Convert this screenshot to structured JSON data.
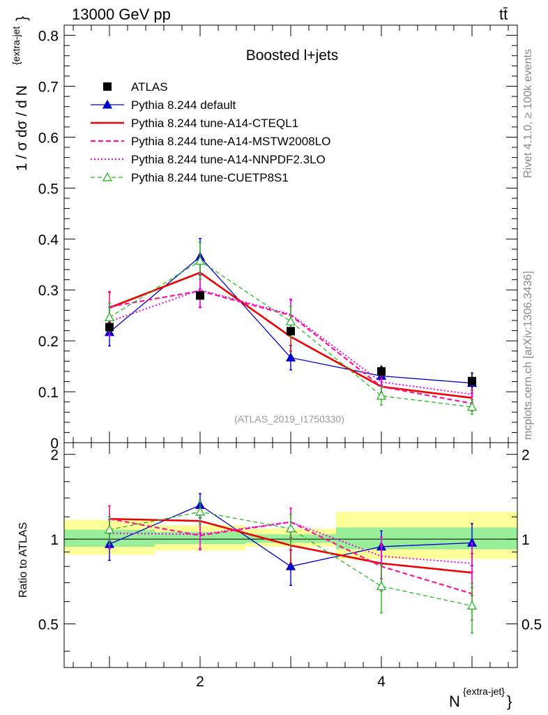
{
  "header": {
    "left_title": "13000 GeV pp",
    "right_title": "tt̄"
  },
  "side_labels": {
    "rivet": "Rivet 4.1.0, ≥ 100k events",
    "mcplots": "mcplots.cern.ch [arXiv:1306.3436]"
  },
  "chart_data": {
    "type": "line",
    "title": "Boosted l+jets",
    "analysis_id": "(ATLAS_2019_I1750330)",
    "xlabel_main": "N",
    "xlabel_sup": "{extra-jet}",
    "xlabel_close": "}",
    "ylabel_main": "1 / σ dσ / d N",
    "ylabel_sup": "{extra-jet",
    "ylabel_close": "}",
    "ratio_ylabel": "Ratio to ATLAS",
    "xlim": [
      0.5,
      5.5
    ],
    "ylim": [
      0,
      0.82
    ],
    "ratio_ylim": [
      0.35,
      2.2
    ],
    "x_ticks": [
      2,
      4
    ],
    "x_tick_labels": [
      "2",
      "4"
    ],
    "y_ticks": [
      0,
      0.1,
      0.2,
      0.3,
      0.4,
      0.5,
      0.6,
      0.7,
      0.8
    ],
    "y_tick_labels": [
      "0",
      "0.1",
      "0.2",
      "0.3",
      "0.4",
      "0.5",
      "0.6",
      "0.7",
      "0.8"
    ],
    "ratio_ticks": [
      0.5,
      1,
      2
    ],
    "ratio_tick_labels": [
      "0.5",
      "1",
      "2"
    ],
    "x": [
      1,
      2,
      3,
      4,
      5
    ],
    "data": {
      "name": "ATLAS",
      "values": [
        0.227,
        0.289,
        0.219,
        0.14,
        0.121
      ],
      "errors": [
        0.01,
        0.008,
        0.008,
        0.012,
        0.015
      ]
    },
    "bands": {
      "yellow": [
        [
          0.5,
          1.5,
          0.88,
          1.17
        ],
        [
          1.5,
          2.5,
          0.91,
          1.12
        ],
        [
          2.5,
          3.5,
          0.94,
          1.09
        ],
        [
          3.5,
          5.5,
          0.85,
          1.25
        ]
      ],
      "green": [
        [
          0.5,
          1.5,
          0.94,
          1.08
        ],
        [
          1.5,
          2.5,
          0.96,
          1.06
        ],
        [
          2.5,
          3.5,
          0.97,
          1.04
        ],
        [
          3.5,
          5.5,
          0.92,
          1.1
        ]
      ]
    },
    "series": [
      {
        "name": "Pythia 8.244 default",
        "color": "#0000cc",
        "dash": "",
        "width": 1.3,
        "marker": "triangle-filled",
        "values": [
          0.217,
          0.365,
          0.167,
          0.131,
          0.117
        ],
        "errors": [
          0.027,
          0.036,
          0.024,
          0.018,
          0.02
        ],
        "ratio": [
          0.96,
          1.32,
          0.8,
          0.94,
          0.97
        ]
      },
      {
        "name": "Pythia 8.244 tune-A14-CTEQL1",
        "color": "#ee0000",
        "dash": "",
        "width": 2.6,
        "marker": "none",
        "values": [
          0.265,
          0.334,
          0.208,
          0.11,
          0.088
        ],
        "errors": [
          0.03,
          0.032,
          0.028,
          0.018,
          0.015
        ],
        "ratio": [
          1.18,
          1.16,
          0.95,
          0.82,
          0.76
        ]
      },
      {
        "name": "Pythia 8.244 tune-A14-MSTW2008LO",
        "color": "#ff1493",
        "dash": "7,4",
        "width": 2.2,
        "marker": "none",
        "values": [
          0.267,
          0.298,
          0.25,
          0.11,
          0.077
        ],
        "errors": [
          0.03,
          0.033,
          0.03,
          0.02,
          0.015
        ],
        "ratio": [
          1.18,
          1.03,
          1.15,
          0.8,
          0.64
        ]
      },
      {
        "name": "Pythia 8.244 tune-A14-NNPDF2.3LO",
        "color": "#ee00ee",
        "dash": "2,3",
        "width": 2.0,
        "marker": "none",
        "values": [
          0.238,
          0.3,
          0.252,
          0.119,
          0.095
        ],
        "errors": [
          0.028,
          0.033,
          0.03,
          0.02,
          0.017
        ],
        "ratio": [
          1.05,
          1.04,
          1.15,
          0.87,
          0.82
        ]
      },
      {
        "name": "Pythia 8.244 tune-CUETP8S1",
        "color": "#22bb22",
        "dash": "6,4",
        "width": 1.3,
        "marker": "triangle-open",
        "values": [
          0.246,
          0.357,
          0.238,
          0.092,
          0.07
        ],
        "errors": [
          0.028,
          0.036,
          0.03,
          0.018,
          0.014
        ],
        "ratio": [
          1.08,
          1.25,
          1.09,
          0.68,
          0.58
        ]
      }
    ]
  }
}
